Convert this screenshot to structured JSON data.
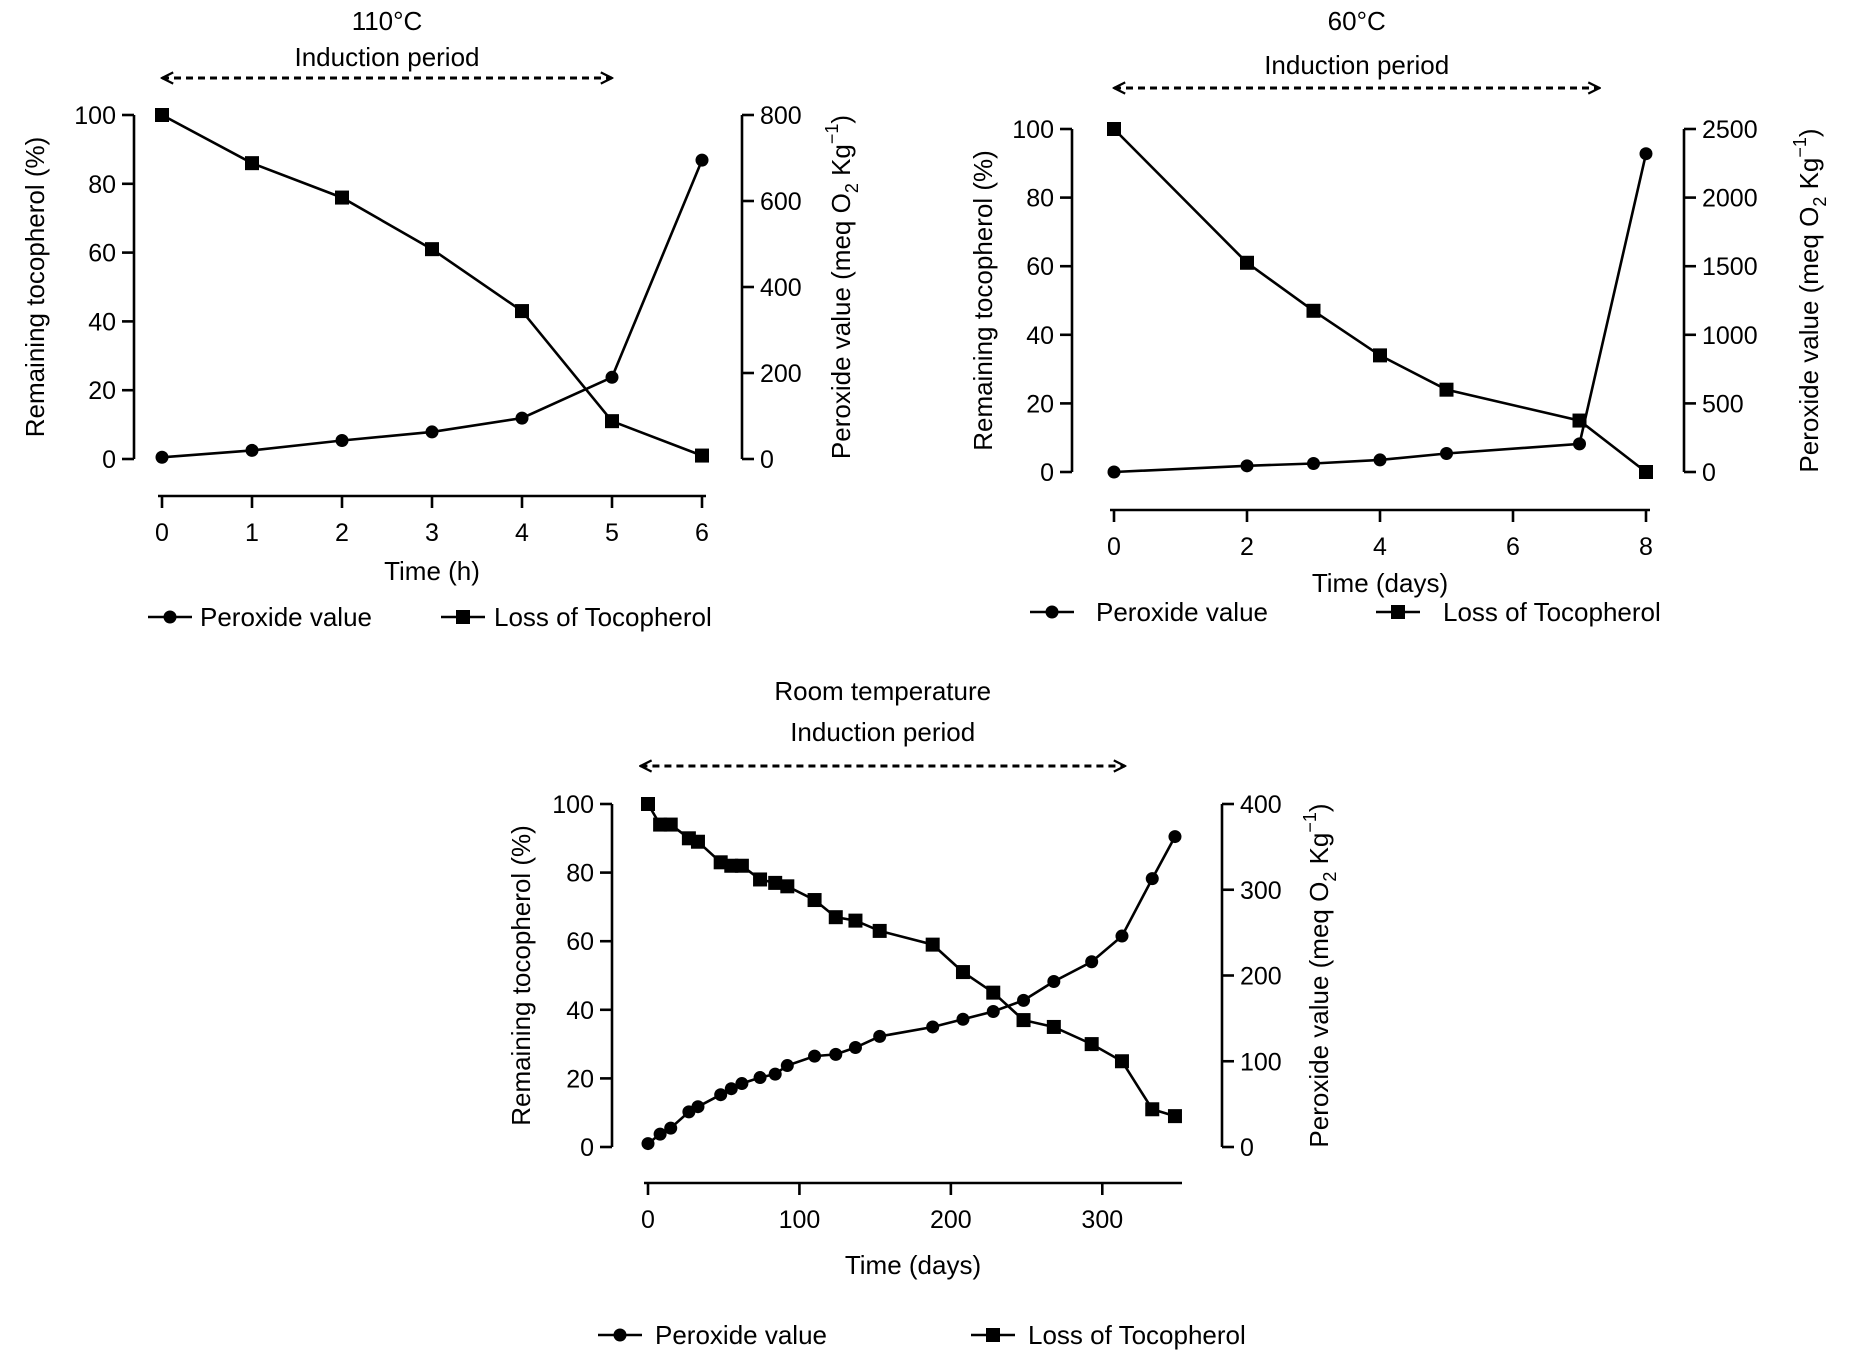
{
  "chart_data": [
    {
      "type": "line",
      "title": "110°C",
      "annotation": "Induction period",
      "induction_period_x": [
        0,
        5
      ],
      "xlabel": "Time (h)",
      "ylabel_left": "Remaining tocopherol (%)",
      "ylabel_right_parts": {
        "main": "Peroxide value (meq  O",
        "sub": "2",
        "mid": " Kg",
        "sup": "−1",
        "end": ")"
      },
      "xlim": [
        0,
        6
      ],
      "ylim_left": [
        0,
        100
      ],
      "ylim_right": [
        0,
        800
      ],
      "x_ticks": [
        0,
        1,
        2,
        3,
        4,
        5,
        6
      ],
      "y_ticks_left": [
        0,
        20,
        40,
        60,
        80,
        100
      ],
      "y_ticks_right": [
        0,
        200,
        400,
        600,
        800
      ],
      "legend_position": "bottom",
      "series": [
        {
          "name": "Peroxide value",
          "marker": "circle",
          "axis": "right",
          "x": [
            0,
            1,
            2,
            3,
            4,
            5,
            6
          ],
          "y": [
            4,
            20,
            43,
            63,
            95,
            190,
            695
          ]
        },
        {
          "name": "Loss of Tocopherol",
          "marker": "square",
          "axis": "left",
          "x": [
            0,
            1,
            2,
            3,
            4,
            5,
            6
          ],
          "y": [
            100,
            86,
            76,
            61,
            43,
            11,
            1
          ]
        }
      ]
    },
    {
      "type": "line",
      "title": "60°C",
      "annotation": "Induction period",
      "induction_period_x": [
        0,
        7.3
      ],
      "xlabel": "Time (days)",
      "ylabel_left": "Remaining tocopherol (%)",
      "ylabel_right_parts": {
        "main": "Peroxide value (meq O",
        "sub": "2",
        "mid": " Kg",
        "sup": "−1",
        "end": ")"
      },
      "xlim": [
        0,
        8
      ],
      "ylim_left": [
        0,
        100
      ],
      "ylim_right": [
        0,
        2500
      ],
      "x_ticks": [
        0,
        2,
        4,
        6,
        8
      ],
      "y_ticks_left": [
        0,
        20,
        40,
        60,
        80,
        100
      ],
      "y_ticks_right": [
        0,
        500,
        1000,
        1500,
        2000,
        2500
      ],
      "legend_position": "bottom",
      "series": [
        {
          "name": "Peroxide value",
          "marker": "circle",
          "axis": "right",
          "x": [
            0,
            2,
            3,
            4,
            5,
            7,
            8
          ],
          "y": [
            0,
            45,
            62,
            88,
            135,
            205,
            2320
          ]
        },
        {
          "name": "Loss of Tocopherol",
          "marker": "square",
          "axis": "left",
          "x": [
            0,
            2,
            3,
            4,
            5,
            7,
            8
          ],
          "y": [
            100,
            61,
            47,
            34,
            24,
            15,
            0
          ]
        }
      ]
    },
    {
      "type": "line",
      "title": "Room temperature",
      "annotation": "Induction period",
      "induction_period_x": [
        -5,
        315
      ],
      "xlabel": "Time (days)",
      "ylabel_left": "Remaining tocopherol (%)",
      "ylabel_right_parts": {
        "main": "Peroxide value (meq  O",
        "sub": "2",
        "mid": " Kg",
        "sup": "−1",
        "end": ")"
      },
      "xlim": [
        0,
        350
      ],
      "ylim_left": [
        0,
        100
      ],
      "ylim_right": [
        0,
        400
      ],
      "x_ticks": [
        0,
        100,
        200,
        300
      ],
      "y_ticks_left": [
        0,
        20,
        40,
        60,
        80,
        100
      ],
      "y_ticks_right": [
        0,
        100,
        200,
        300,
        400
      ],
      "legend_position": "bottom",
      "series": [
        {
          "name": "Peroxide value",
          "marker": "circle",
          "axis": "right",
          "x": [
            0,
            8,
            15,
            27,
            33,
            48,
            55,
            62,
            74,
            84,
            92,
            110,
            124,
            137,
            153,
            188,
            208,
            228,
            248,
            268,
            293,
            313,
            333,
            348
          ],
          "y": [
            4,
            15,
            22,
            41,
            47,
            61,
            68,
            74,
            81,
            85,
            95,
            106,
            108,
            116,
            129,
            140,
            149,
            158,
            171,
            193,
            216,
            246,
            313,
            362
          ]
        },
        {
          "name": "Loss of Tocopherol",
          "marker": "square",
          "axis": "left",
          "x": [
            0,
            8,
            15,
            27,
            33,
            48,
            55,
            62,
            74,
            84,
            92,
            110,
            124,
            137,
            153,
            188,
            208,
            228,
            248,
            268,
            293,
            313,
            333,
            348
          ],
          "y": [
            100,
            94,
            94,
            90,
            89,
            83,
            82,
            82,
            78,
            77,
            76,
            72,
            67,
            66,
            63,
            59,
            51,
            45,
            37,
            35,
            30,
            25,
            11,
            9
          ]
        }
      ]
    }
  ]
}
